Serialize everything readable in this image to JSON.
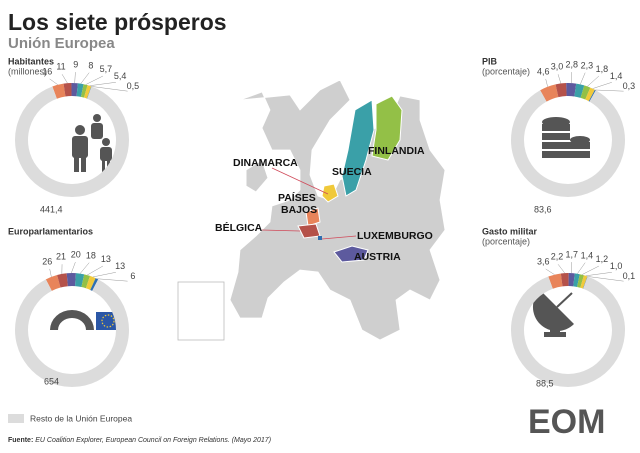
{
  "header": {
    "title": "Los siete prósperos",
    "subtitle": "Unión Europea"
  },
  "chart_data": [
    {
      "type": "pie",
      "title": "Habitantes",
      "subtitle": "(millones)",
      "values": [
        16,
        11,
        9,
        8,
        5.7,
        5.4,
        0.5,
        441.4
      ],
      "value_labels": [
        "16",
        "11",
        "9",
        "8",
        "5,7",
        "5,4",
        "0,5",
        "441,4"
      ],
      "colors": [
        "#e8845a",
        "#b5524a",
        "#5d5a9e",
        "#3aa0a8",
        "#93c047",
        "#f0c93a",
        "#2f6fb0",
        "#dcdcdc"
      ]
    },
    {
      "type": "pie",
      "title": "PIB",
      "subtitle": "(porcentaje)",
      "values": [
        4.6,
        3.0,
        2.8,
        2.3,
        1.8,
        1.4,
        0.3,
        83.6
      ],
      "value_labels": [
        "4,6",
        "3,0",
        "2,8",
        "2,3",
        "1,8",
        "1,4",
        "0,3",
        "83,6"
      ],
      "colors": [
        "#e8845a",
        "#b5524a",
        "#5d5a9e",
        "#3aa0a8",
        "#93c047",
        "#f0c93a",
        "#2f6fb0",
        "#dcdcdc"
      ]
    },
    {
      "type": "pie",
      "title": "Europarlamentarios",
      "values": [
        26,
        21,
        20,
        18,
        13,
        13,
        6,
        654
      ],
      "colors": [
        "#e8845a",
        "#b5524a",
        "#5d5a9e",
        "#3aa0a8",
        "#93c047",
        "#f0c93a",
        "#2f6fb0",
        "#dcdcdc"
      ]
    },
    {
      "type": "pie",
      "title": "Gasto militar",
      "subtitle": "(porcentaje)",
      "values": [
        3.6,
        2.2,
        1.7,
        1.4,
        1.2,
        1.0,
        0.1,
        88.5
      ],
      "value_labels": [
        "3,6",
        "2,2",
        "1,7",
        "1,4",
        "1,2",
        "1,0",
        "0,1",
        "88,5"
      ],
      "colors": [
        "#e8845a",
        "#b5524a",
        "#5d5a9e",
        "#3aa0a8",
        "#93c047",
        "#f0c93a",
        "#2f6fb0",
        "#dcdcdc"
      ]
    }
  ],
  "map": {
    "labels": [
      "DINAMARCA",
      "SUECIA",
      "FINLANDIA",
      "PAÍSES",
      "BAJOS",
      "BÉLGICA",
      "LUXEMBURGO",
      "AUSTRIA"
    ]
  },
  "legend": {
    "label": "Resto de la Unión Europea",
    "color": "#dcdcdc"
  },
  "source": {
    "label": "Fuente:",
    "text": "EU Coalition Explorer, European Council on Foreign Relations. (Mayo 2017)"
  },
  "logo": "EOM"
}
